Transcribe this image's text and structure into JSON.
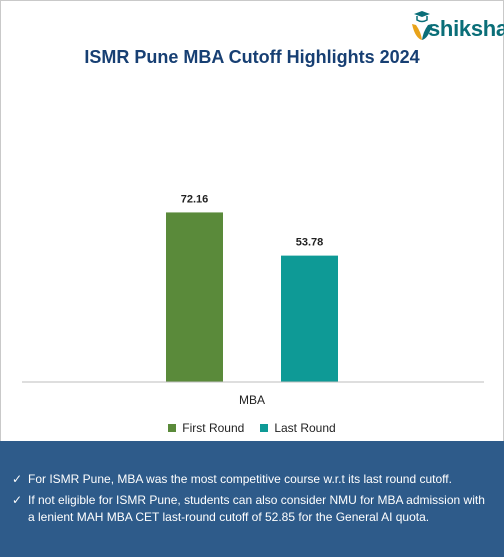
{
  "brand": {
    "logo_text": "shiksha"
  },
  "title": "ISMR Pune MBA Cutoff Highlights 2024",
  "chart_data": {
    "type": "bar",
    "title": "ISMR Pune MBA Cutoff Highlights 2024",
    "categories": [
      "MBA"
    ],
    "series": [
      {
        "name": "First Round",
        "values": [
          72.16
        ],
        "color": "#5a8a3a"
      },
      {
        "name": "Last Round",
        "values": [
          53.78
        ],
        "color": "#0e9a96"
      }
    ],
    "data_labels": [
      "72.16",
      "53.78"
    ],
    "ylim": [
      0,
      100
    ],
    "grid": false,
    "legend_position": "bottom"
  },
  "legend": {
    "first": "First Round",
    "last": "Last Round"
  },
  "notes": [
    "For ISMR Pune, MBA was the most competitive course w.r.t its last round cutoff.",
    "If not eligible for ISMR Pune, students can also consider NMU for MBA admission with a lenient MAH MBA CET last-round cutoff of 52.85 for the General AI quota."
  ],
  "icons": {
    "check": "✓"
  }
}
